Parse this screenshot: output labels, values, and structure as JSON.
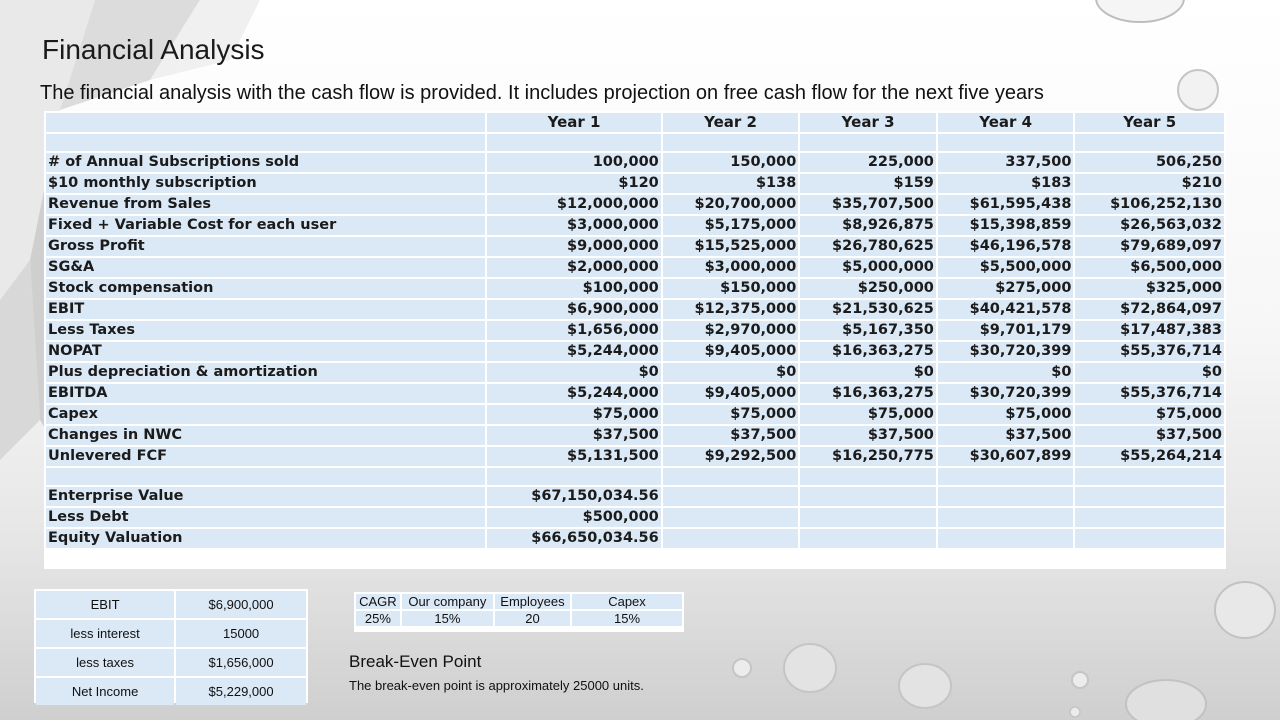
{
  "slide": {
    "title": "Financial Analysis",
    "subtitle": "The financial analysis with the cash flow is provided. It includes  projection on free cash flow for the next five years"
  },
  "main_table": {
    "headers": [
      "",
      "Year 1",
      "Year 2",
      "Year 3",
      "Year 4",
      "Year 5"
    ],
    "rows": [
      {
        "label": "# of Annual Subscriptions sold",
        "values": [
          "100,000",
          "150,000",
          "225,000",
          "337,500",
          "506,250"
        ]
      },
      {
        "label": "$10  monthly subscription",
        "values": [
          "$120",
          "$138",
          "$159",
          "$183",
          "$210"
        ]
      },
      {
        "label": "Revenue from Sales",
        "values": [
          "$12,000,000",
          "$20,700,000",
          "$35,707,500",
          "$61,595,438",
          "$106,252,130"
        ]
      },
      {
        "label": "Fixed + Variable Cost for each user",
        "values": [
          "$3,000,000",
          "$5,175,000",
          "$8,926,875",
          "$15,398,859",
          "$26,563,032"
        ]
      },
      {
        "label": "Gross Profit",
        "values": [
          "$9,000,000",
          "$15,525,000",
          "$26,780,625",
          "$46,196,578",
          "$79,689,097"
        ]
      },
      {
        "label": "SG&A",
        "values": [
          "$2,000,000",
          "$3,000,000",
          "$5,000,000",
          "$5,500,000",
          "$6,500,000"
        ]
      },
      {
        "label": "Stock compensation",
        "values": [
          "$100,000",
          "$150,000",
          "$250,000",
          "$275,000",
          "$325,000"
        ]
      },
      {
        "label": "EBIT",
        "values": [
          "$6,900,000",
          "$12,375,000",
          "$21,530,625",
          "$40,421,578",
          "$72,864,097"
        ]
      },
      {
        "label": "Less Taxes",
        "values": [
          "$1,656,000",
          "$2,970,000",
          "$5,167,350",
          "$9,701,179",
          "$17,487,383"
        ]
      },
      {
        "label": "NOPAT",
        "values": [
          "$5,244,000",
          "$9,405,000",
          "$16,363,275",
          "$30,720,399",
          "$55,376,714"
        ]
      },
      {
        "label": "Plus depreciation & amortization",
        "values": [
          "$0",
          "$0",
          "$0",
          "$0",
          "$0"
        ]
      },
      {
        "label": "EBITDA",
        "values": [
          "$5,244,000",
          "$9,405,000",
          "$16,363,275",
          "$30,720,399",
          "$55,376,714"
        ]
      },
      {
        "label": "Capex",
        "values": [
          "$75,000",
          "$75,000",
          "$75,000",
          "$75,000",
          "$75,000"
        ]
      },
      {
        "label": "Changes in NWC",
        "values": [
          "$37,500",
          "$37,500",
          "$37,500",
          "$37,500",
          "$37,500"
        ]
      },
      {
        "label": "Unlevered FCF",
        "values": [
          "$5,131,500",
          "$9,292,500",
          "$16,250,775",
          "$30,607,899",
          "$55,264,214"
        ]
      }
    ],
    "valuation": [
      {
        "label": "Enterprise Value",
        "value": "$67,150,034.56"
      },
      {
        "label": "Less Debt",
        "value": "$500,000"
      },
      {
        "label": "Equity Valuation",
        "value": "$66,650,034.56"
      }
    ]
  },
  "income_table": [
    {
      "label": "EBIT",
      "value": "$6,900,000"
    },
    {
      "label": "less interest",
      "value": "15000"
    },
    {
      "label": "less taxes",
      "value": "$1,656,000"
    },
    {
      "label": "Net Income",
      "value": "$5,229,000"
    }
  ],
  "cagr_table": {
    "headers": [
      "CAGR",
      "Our company",
      "Employees",
      "Capex"
    ],
    "values": [
      "25%",
      "15%",
      "20",
      "15%"
    ]
  },
  "break_even": {
    "title": "Break-Even Point",
    "text": "The break-even point is approximately 25000 units."
  }
}
